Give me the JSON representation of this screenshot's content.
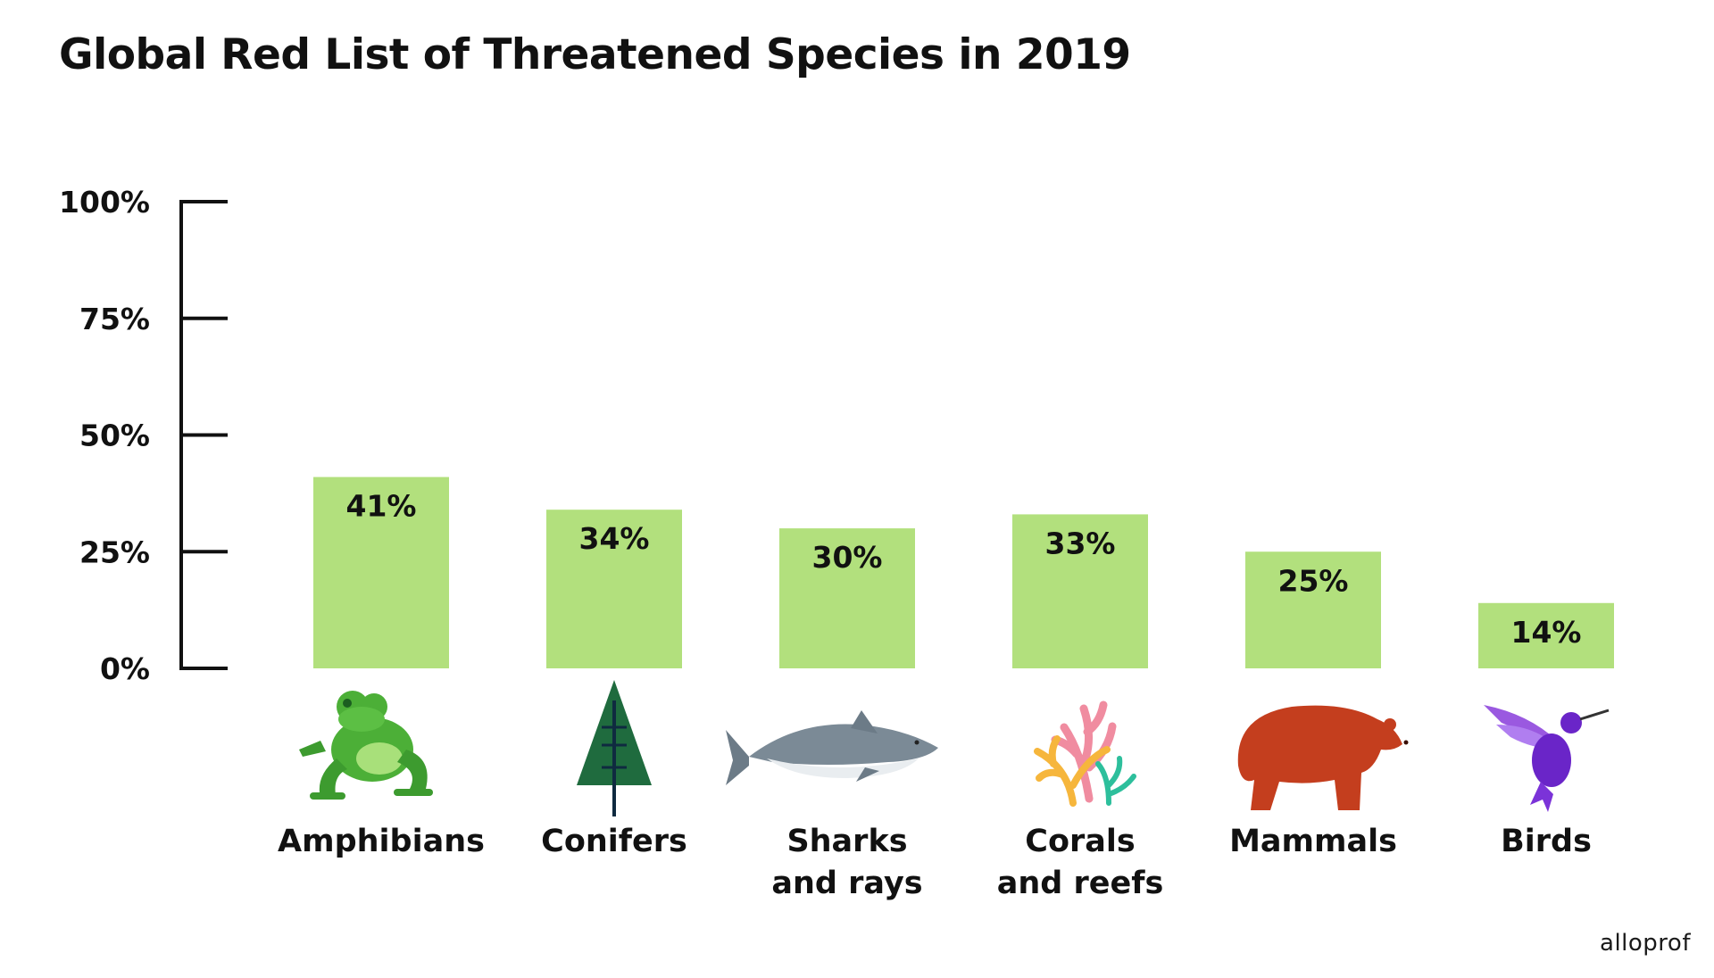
{
  "chart_data": {
    "type": "bar",
    "title": "Global Red List of Threatened Species in 2019",
    "categories": [
      "Amphibians",
      "Conifers",
      "Sharks and rays",
      "Corals and reefs",
      "Mammals",
      "Birds"
    ],
    "category_lines": [
      [
        "Amphibians"
      ],
      [
        "Conifers"
      ],
      [
        "Sharks",
        "and rays"
      ],
      [
        "Corals",
        "and reefs"
      ],
      [
        "Mammals"
      ],
      [
        "Birds"
      ]
    ],
    "values": [
      41,
      34,
      30,
      33,
      25,
      14
    ],
    "data_labels": [
      "41%",
      "34%",
      "30%",
      "33%",
      "25%",
      "14%"
    ],
    "yticks": [
      0,
      25,
      50,
      75,
      100
    ],
    "ytick_labels": [
      "0%",
      "25%",
      "50%",
      "75%",
      "100%"
    ],
    "ylim": [
      0,
      100
    ],
    "xlabel": "",
    "ylabel": "",
    "grid": false,
    "bar_color": "#b2e07d",
    "icons": [
      "frog-icon",
      "conifer-tree-icon",
      "shark-icon",
      "coral-icon",
      "bear-icon",
      "hummingbird-icon"
    ]
  },
  "brand": "alloprof"
}
